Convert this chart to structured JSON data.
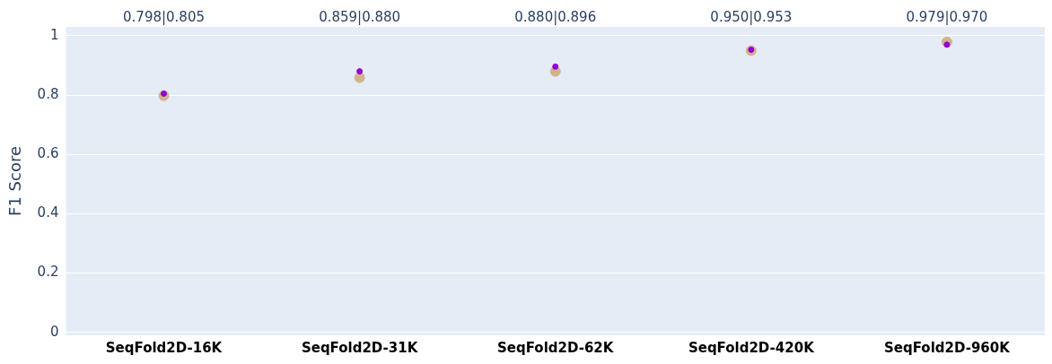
{
  "chart_data": {
    "type": "scatter",
    "ylabel": "F1 Score",
    "marker": "circle",
    "categories": [
      "SeqFold2D-16K",
      "SeqFold2D-31K",
      "SeqFold2D-62K",
      "SeqFold2D-420K",
      "SeqFold2D-960K"
    ],
    "series": [
      {
        "color": "#d2b48c",
        "values": [
          0.798,
          0.859,
          0.88,
          0.95,
          0.979
        ]
      },
      {
        "color": "#9400d3",
        "values": [
          0.805,
          0.88,
          0.896,
          0.953,
          0.97
        ]
      }
    ],
    "ylim": [
      -0.01,
      1.03
    ],
    "yticks": [
      0,
      0.2,
      0.4,
      0.6,
      0.8,
      {
        "value": 1,
        "label": "1"
      }
    ],
    "grid": "y",
    "annotations": [
      "0.798|0.805",
      "0.859|0.880",
      "0.880|0.896",
      "0.950|0.953",
      "0.979|0.970"
    ]
  }
}
